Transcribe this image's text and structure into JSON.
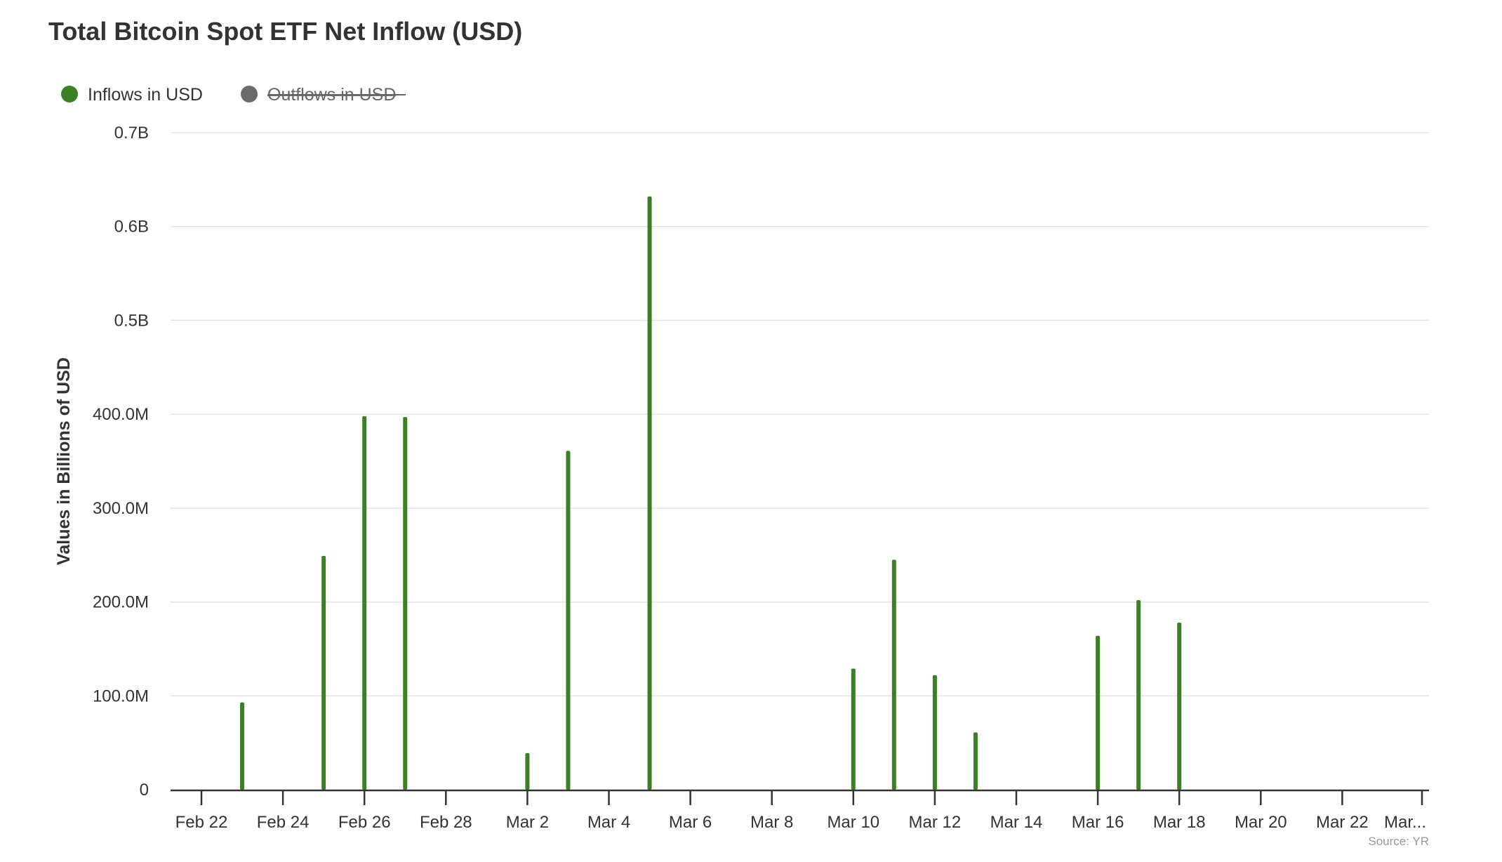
{
  "chart_data": {
    "type": "bar",
    "title": "Total Bitcoin Spot ETF Net Inflow (USD)",
    "ylabel": "Values in Billions of USD",
    "xlabel": "",
    "credit": "Source: YR",
    "legend": [
      {
        "name": "Inflows in USD",
        "color": "#3a8025",
        "visible": true
      },
      {
        "name": "Outflows in USD",
        "color": "#6b6b6b",
        "visible": false
      }
    ],
    "legend_placement": "top-left",
    "grid": true,
    "ylim": [
      0,
      700
    ],
    "y_ticks": [
      {
        "value": 0,
        "label": "0"
      },
      {
        "value": 100,
        "label": "100.0M"
      },
      {
        "value": 200,
        "label": "200.0M"
      },
      {
        "value": 300,
        "label": "300.0M"
      },
      {
        "value": 400,
        "label": "400.0M"
      },
      {
        "value": 500,
        "label": "0.5B"
      },
      {
        "value": 600,
        "label": "0.6B"
      },
      {
        "value": 700,
        "label": "0.7B"
      }
    ],
    "x_ticks": [
      {
        "day": 0,
        "label": "Feb 22"
      },
      {
        "day": 2,
        "label": "Feb 24"
      },
      {
        "day": 4,
        "label": "Feb 26"
      },
      {
        "day": 6,
        "label": "Feb 28"
      },
      {
        "day": 8,
        "label": "Mar 2"
      },
      {
        "day": 10,
        "label": "Mar 4"
      },
      {
        "day": 12,
        "label": "Mar 6"
      },
      {
        "day": 14,
        "label": "Mar 8"
      },
      {
        "day": 16,
        "label": "Mar 10"
      },
      {
        "day": 18,
        "label": "Mar 12"
      },
      {
        "day": 20,
        "label": "Mar 14"
      },
      {
        "day": 22,
        "label": "Mar 16"
      },
      {
        "day": 24,
        "label": "Mar 18"
      },
      {
        "day": 26,
        "label": "Mar 20"
      },
      {
        "day": 28,
        "label": "Mar 22"
      },
      {
        "day": 30,
        "label": "Mar..."
      }
    ],
    "xlim_days": [
      -0.75,
      30.2
    ],
    "unit": "Million USD",
    "series": [
      {
        "name": "Inflows in USD",
        "points": [
          {
            "date": "Feb 23",
            "day": 1,
            "value": 93
          },
          {
            "date": "Feb 25",
            "day": 3,
            "value": 249
          },
          {
            "date": "Feb 26",
            "day": 4,
            "value": 398
          },
          {
            "date": "Feb 27",
            "day": 5,
            "value": 397
          },
          {
            "date": "Mar 2",
            "day": 8,
            "value": 39
          },
          {
            "date": "Mar 3",
            "day": 9,
            "value": 361
          },
          {
            "date": "Mar 5",
            "day": 11,
            "value": 632
          },
          {
            "date": "Mar 10",
            "day": 16,
            "value": 129
          },
          {
            "date": "Mar 11",
            "day": 17,
            "value": 245
          },
          {
            "date": "Mar 12",
            "day": 18,
            "value": 122
          },
          {
            "date": "Mar 13",
            "day": 19,
            "value": 61
          },
          {
            "date": "Mar 16",
            "day": 22,
            "value": 164
          },
          {
            "date": "Mar 17",
            "day": 23,
            "value": 202
          },
          {
            "date": "Mar 18",
            "day": 24,
            "value": 178
          }
        ]
      }
    ]
  }
}
